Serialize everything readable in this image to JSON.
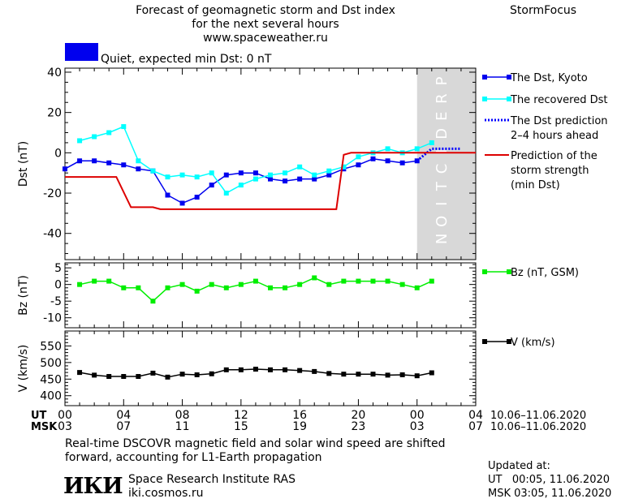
{
  "header": {
    "title_lines": [
      "Forecast of geomagnetic storm and Dst index",
      "for the next several hours",
      "www.spaceweather.ru"
    ],
    "brand": "StormFocus",
    "status_text": "Quiet, expected min Dst: 0 nT"
  },
  "colors": {
    "status_box": "#0000ee",
    "dst_kyoto": "#0000ee",
    "recovered": "#00ffff",
    "dst_prediction": "#0000ff",
    "storm_prediction": "#dd0000",
    "bz": "#00ee00",
    "v": "#000000",
    "prediction_band": "#d8d8d8",
    "prediction_text": "#ffffff"
  },
  "footer": {
    "note_lines": [
      "Real-time DSCOVR magnetic field and solar wind speed are shifted",
      "forward, accounting for L1-Earth propagation"
    ],
    "institute_logo": "ИКИ",
    "institute_name": "Space Research Institute RAS",
    "institute_url": "iki.cosmos.ru",
    "updated_label": "Updated at:",
    "updated_ut": "UT   00:05, 11.06.2020",
    "updated_msk": "MSK 03:05, 11.06.2020"
  },
  "chart_data": [
    {
      "type": "line",
      "ylabel": "Dst (nT)",
      "ylim": [
        -53,
        42
      ],
      "yticks": [
        40,
        20,
        0,
        -20,
        -40
      ],
      "xlim": [
        0,
        28
      ],
      "prediction_band": [
        24,
        28
      ],
      "prediction_label": "PREDICTION",
      "legend_placement": "right",
      "series": [
        {
          "name": "The Dst, Kyoto",
          "style": "line-square",
          "x": [
            0,
            1,
            2,
            3,
            4,
            5,
            6,
            7,
            8,
            9,
            10,
            11,
            12,
            13,
            14,
            15,
            16,
            17,
            18,
            19,
            20,
            21,
            22,
            23,
            24
          ],
          "values": [
            -8,
            -4,
            -4,
            -5,
            -6,
            -8,
            -9,
            -21,
            -25,
            -22,
            -16,
            -11,
            -10,
            -10,
            -13,
            -14,
            -13,
            -13,
            -11,
            -8,
            -6,
            -3,
            -4,
            -5,
            -4
          ]
        },
        {
          "name": "The recovered Dst",
          "style": "line-square",
          "x": [
            1,
            2,
            3,
            4,
            5,
            6,
            7,
            8,
            9,
            10,
            11,
            12,
            13,
            14,
            15,
            16,
            17,
            18,
            19,
            20,
            21,
            22,
            23,
            24,
            25
          ],
          "values": [
            6,
            8,
            10,
            13,
            -4,
            -9,
            -12,
            -11,
            -12,
            -10,
            -20,
            -16,
            -13,
            -11,
            -10,
            -7,
            -11,
            -9,
            -7,
            -2,
            0,
            2,
            0,
            2,
            5
          ]
        },
        {
          "name": "The Dst prediction\n2–4 hours ahead",
          "style": "dotted",
          "x": [
            24,
            25,
            26,
            27
          ],
          "values": [
            -4,
            2,
            2,
            2
          ]
        },
        {
          "name": "Prediction of the\nstorm strength\n(min Dst)",
          "style": "step",
          "x": [
            0,
            3.5,
            4.5,
            6,
            6.5,
            18.5,
            19,
            19.5,
            28
          ],
          "values": [
            -12,
            -12,
            -27,
            -27,
            -28,
            -28,
            -1,
            0,
            0
          ]
        }
      ]
    },
    {
      "type": "line",
      "ylabel": "Bz (nT)",
      "ylim": [
        -13,
        6.5
      ],
      "yticks": [
        5,
        0,
        -5,
        -10
      ],
      "xlim": [
        0,
        28
      ],
      "series": [
        {
          "name": "Bz (nT, GSM)",
          "x": [
            1,
            2,
            3,
            4,
            5,
            6,
            7,
            8,
            9,
            10,
            11,
            12,
            13,
            14,
            15,
            16,
            17,
            18,
            19,
            20,
            21,
            22,
            23,
            24,
            25
          ],
          "values": [
            0,
            1,
            1,
            -1,
            -1,
            -5,
            -1,
            0,
            -2,
            0,
            -1,
            0,
            1,
            -1,
            -1,
            0,
            2,
            0,
            1,
            1,
            1,
            1,
            0,
            -1,
            1
          ]
        }
      ]
    },
    {
      "type": "line",
      "ylabel": "V (km/s)",
      "ylim": [
        370,
        595
      ],
      "yticks": [
        550,
        500,
        450,
        400
      ],
      "xlim": [
        0,
        28
      ],
      "series": [
        {
          "name": "V (km/s)",
          "x": [
            1,
            2,
            3,
            4,
            5,
            6,
            7,
            8,
            9,
            10,
            11,
            12,
            13,
            14,
            15,
            16,
            17,
            18,
            19,
            20,
            21,
            22,
            23,
            24,
            25
          ],
          "values": [
            470,
            462,
            458,
            458,
            458,
            468,
            456,
            465,
            463,
            466,
            478,
            478,
            480,
            478,
            478,
            476,
            473,
            467,
            465,
            465,
            465,
            462,
            463,
            460,
            469
          ]
        }
      ]
    }
  ],
  "time_axis": {
    "ut_label": "UT",
    "msk_label": "MSK",
    "ut_ticks": [
      "00",
      "04",
      "08",
      "12",
      "16",
      "20",
      "00",
      "04"
    ],
    "msk_ticks": [
      "03",
      "07",
      "11",
      "15",
      "19",
      "23",
      "03",
      "07"
    ],
    "ut_dates": "10.06–11.06.2020",
    "msk_dates": "10.06–11.06.2020"
  }
}
